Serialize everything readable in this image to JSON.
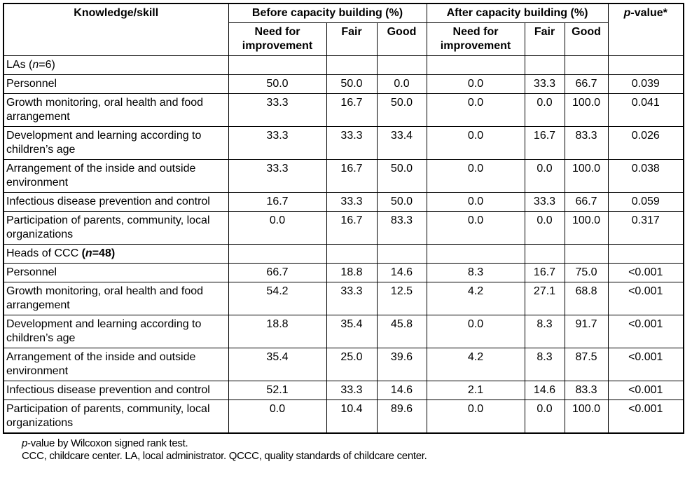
{
  "header": {
    "col_knowledge": "Knowledge/skill",
    "group_before": "Before capacity building (%)",
    "group_after": "After capacity building (%)",
    "p_value": {
      "italic": "p",
      "rest": "-value*"
    },
    "sub": {
      "need": "Need for improvement",
      "fair": "Fair",
      "good": "Good"
    }
  },
  "sections": [
    {
      "label": {
        "pre": "LAs ",
        "open": "(",
        "n": "n",
        "post": "=6)",
        "bold_group": false
      },
      "rows": [
        {
          "label": "Personnel",
          "before": [
            "50.0",
            "50.0",
            "0.0"
          ],
          "after": [
            "0.0",
            "33.3",
            "66.7"
          ],
          "p": "0.039"
        },
        {
          "label": "Growth monitoring, oral health and food arrangement",
          "before": [
            "33.3",
            "16.7",
            "50.0"
          ],
          "after": [
            "0.0",
            "0.0",
            "100.0"
          ],
          "p": "0.041"
        },
        {
          "label": "Development and learning according to children’s age",
          "before": [
            "33.3",
            "33.3",
            "33.4"
          ],
          "after": [
            "0.0",
            "16.7",
            "83.3"
          ],
          "p": "0.026"
        },
        {
          "label": "Arrangement of the inside and outside environment",
          "before": [
            "33.3",
            "16.7",
            "50.0"
          ],
          "after": [
            "0.0",
            "0.0",
            "100.0"
          ],
          "p": "0.038"
        },
        {
          "label": "Infectious disease prevention and control",
          "before": [
            "16.7",
            "33.3",
            "50.0"
          ],
          "after": [
            "0.0",
            "33.3",
            "66.7"
          ],
          "p": "0.059"
        },
        {
          "label": "Participation of parents, community, local organizations",
          "before": [
            "0.0",
            "16.7",
            "83.3"
          ],
          "after": [
            "0.0",
            "0.0",
            "100.0"
          ],
          "p": "0.317"
        }
      ]
    },
    {
      "label": {
        "pre": "Heads of CCC ",
        "open": "(",
        "n": "n",
        "post": "=48)",
        "bold_group": true
      },
      "rows": [
        {
          "label": "Personnel",
          "before": [
            "66.7",
            "18.8",
            "14.6"
          ],
          "after": [
            "8.3",
            "16.7",
            "75.0"
          ],
          "p": "<0.001"
        },
        {
          "label": "Growth monitoring, oral health and food arrangement",
          "before": [
            "54.2",
            "33.3",
            "12.5"
          ],
          "after": [
            "4.2",
            "27.1",
            "68.8"
          ],
          "p": "<0.001"
        },
        {
          "label": "Development and learning according to children’s age",
          "before": [
            "18.8",
            "35.4",
            "45.8"
          ],
          "after": [
            "0.0",
            "8.3",
            "91.7"
          ],
          "p": "<0.001"
        },
        {
          "label": "Arrangement of the inside and outside environment",
          "before": [
            "35.4",
            "25.0",
            "39.6"
          ],
          "after": [
            "4.2",
            "8.3",
            "87.5"
          ],
          "p": "<0.001"
        },
        {
          "label": "Infectious disease prevention and control",
          "before": [
            "52.1",
            "33.3",
            "14.6"
          ],
          "after": [
            "2.1",
            "14.6",
            "83.3"
          ],
          "p": "<0.001"
        },
        {
          "label": "Participation of parents, community, local organizations",
          "before": [
            "0.0",
            "10.4",
            "89.6"
          ],
          "after": [
            "0.0",
            "0.0",
            "100.0"
          ],
          "p": "<0.001"
        }
      ]
    }
  ],
  "footnotes": [
    {
      "italic": "p",
      "rest": "-value by Wilcoxon signed rank test."
    },
    {
      "italic": "",
      "rest": "CCC, childcare center. LA, local administrator. QCCC, quality standards of childcare center."
    }
  ]
}
